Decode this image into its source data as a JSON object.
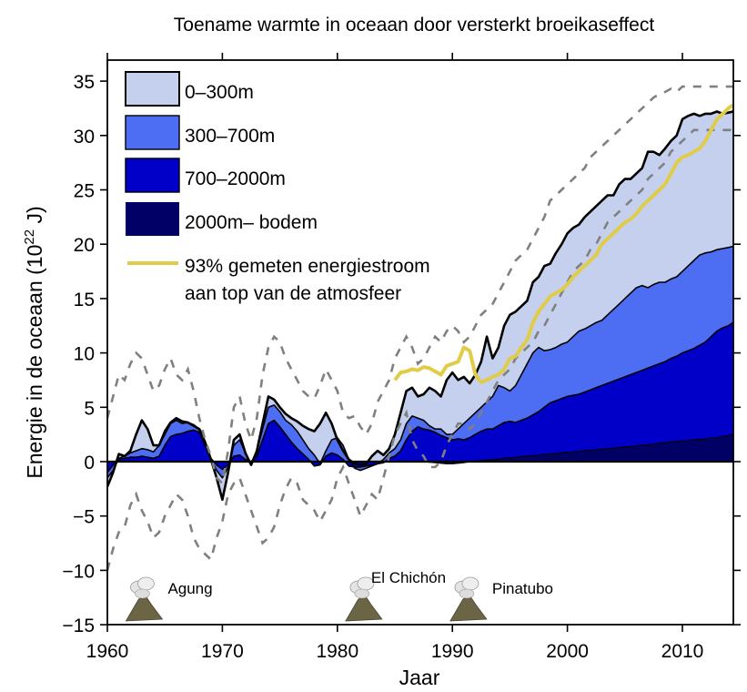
{
  "chart_data": {
    "type": "area",
    "title": "Toename warmte in oceaan door versterkt broeikaseffect",
    "xlabel": "Jaar",
    "ylabel": "Energie in de oceaan (10",
    "ylabel_sup": "22",
    "ylabel_unit": " J)",
    "xlim": [
      1960,
      2014.4
    ],
    "ylim": [
      -15,
      37
    ],
    "x_ticks": [
      1960,
      1970,
      1980,
      1990,
      2000,
      2010
    ],
    "x_tick_labels": [
      "1960",
      "1970",
      "1980",
      "1990",
      "2000",
      "2010"
    ],
    "y_ticks": [
      -15,
      -10,
      -5,
      0,
      5,
      10,
      15,
      20,
      25,
      30,
      35
    ],
    "y_tick_labels": [
      "−15",
      "−10",
      "−5",
      "0",
      "5",
      "10",
      "15",
      "20",
      "25",
      "30",
      "35"
    ],
    "grid": false,
    "legend_position": "top-left",
    "legend": [
      {
        "label": "0–300m",
        "color": "#c4d0ee",
        "kind": "area"
      },
      {
        "label": "300–700m",
        "color": "#4d6df2",
        "kind": "area"
      },
      {
        "label": "700–2000m",
        "color": "#0000c8",
        "kind": "area"
      },
      {
        "label": "2000m– bodem",
        "color": "#000066",
        "kind": "area"
      },
      {
        "label": "93% gemeten energiestroom",
        "label2": "aan top van de atmosfeer",
        "color": "#e0cc48",
        "kind": "line"
      }
    ],
    "stacked_note": "Values are cumulative tops of each layer (stacked from bottom).",
    "x": [
      1960,
      1960.5,
      1961,
      1961.5,
      1962,
      1962.5,
      1963,
      1963.5,
      1964,
      1964.5,
      1965,
      1965.5,
      1966,
      1966.5,
      1967,
      1967.5,
      1968,
      1968.5,
      1969,
      1969.5,
      1970,
      1970.5,
      1971,
      1971.5,
      1972,
      1972.5,
      1973,
      1973.5,
      1974,
      1974.5,
      1975,
      1975.5,
      1976,
      1976.5,
      1977,
      1977.5,
      1978,
      1978.5,
      1979,
      1979.5,
      1980,
      1980.5,
      1981,
      1981.5,
      1982,
      1982.5,
      1983,
      1983.5,
      1984,
      1984.5,
      1985,
      1985.5,
      1986,
      1986.5,
      1987,
      1987.5,
      1988,
      1988.5,
      1989,
      1989.5,
      1990,
      1990.5,
      1991,
      1991.5,
      1992,
      1992.5,
      1993,
      1993.5,
      1994,
      1994.5,
      1995,
      1995.5,
      1996,
      1996.5,
      1997,
      1997.5,
      1998,
      1998.5,
      1999,
      1999.5,
      2000,
      2000.5,
      2001,
      2001.5,
      2002,
      2002.5,
      2003,
      2003.5,
      2004,
      2004.5,
      2005,
      2005.5,
      2006,
      2006.5,
      2007,
      2007.5,
      2008,
      2008.5,
      2009,
      2009.5,
      2010,
      2010.5,
      2011,
      2011.5,
      2012,
      2012.5,
      2013,
      2013.5,
      2014,
      2014.4
    ],
    "series": [
      {
        "name": "2000m– bodem",
        "values": [
          0,
          0,
          0,
          0,
          0,
          0,
          0,
          0,
          0,
          0,
          0,
          0,
          0,
          0,
          0,
          0,
          0,
          0,
          0,
          0,
          0,
          0,
          0,
          0,
          0,
          0,
          0,
          0,
          0,
          0,
          0,
          0,
          0,
          0,
          0,
          0,
          0,
          0,
          0,
          0,
          0,
          0,
          0,
          0,
          0,
          0,
          0,
          0,
          0,
          0,
          0,
          0,
          0,
          0,
          0,
          0,
          -0.05,
          -0.1,
          -0.15,
          -0.2,
          -0.2,
          -0.15,
          -0.1,
          0,
          0.05,
          0.1,
          0.15,
          0.2,
          0.25,
          0.3,
          0.35,
          0.4,
          0.45,
          0.5,
          0.55,
          0.6,
          0.65,
          0.7,
          0.75,
          0.8,
          0.85,
          0.9,
          0.95,
          1.0,
          1.05,
          1.1,
          1.15,
          1.2,
          1.25,
          1.3,
          1.35,
          1.4,
          1.45,
          1.5,
          1.55,
          1.6,
          1.7,
          1.75,
          1.8,
          1.85,
          1.9,
          1.95,
          2.0,
          2.05,
          2.1,
          2.15,
          2.2,
          2.3,
          2.4,
          2.5
        ]
      },
      {
        "name": "700–2000m",
        "values": [
          -1.0,
          -0.3,
          0.2,
          0.3,
          0.4,
          0.4,
          0.5,
          0.4,
          0.3,
          0.5,
          1.5,
          2.3,
          2.5,
          2.6,
          2.8,
          2.9,
          2.7,
          1.5,
          0.3,
          -0.3,
          -0.7,
          -0.3,
          0.5,
          0.6,
          0.2,
          0,
          0.5,
          2.0,
          3.5,
          3.8,
          3.2,
          2.5,
          1.8,
          1.2,
          0.7,
          0.2,
          -0.4,
          -0.3,
          0.5,
          0.8,
          0.6,
          0.2,
          -0.4,
          -0.5,
          -0.5,
          -0.4,
          -0.3,
          -0.2,
          -0.1,
          0.3,
          0.5,
          1.0,
          2.0,
          2.8,
          3.2,
          3.0,
          2.9,
          2.7,
          2.4,
          2.2,
          2.0,
          2.1,
          2.0,
          2.2,
          2.5,
          2.8,
          3.0,
          3.0,
          3.3,
          3.6,
          3.7,
          3.6,
          3.8,
          4.0,
          4.3,
          4.6,
          5.0,
          5.4,
          5.6,
          5.8,
          6.0,
          6.1,
          6.2,
          6.4,
          6.6,
          6.8,
          7.0,
          7.2,
          7.4,
          7.6,
          7.8,
          8.0,
          8.2,
          8.4,
          8.6,
          8.8,
          9.0,
          9.2,
          9.5,
          9.7,
          10.0,
          10.2,
          10.4,
          10.7,
          11.0,
          11.5,
          12.0,
          12.3,
          12.5,
          12.8
        ]
      },
      {
        "name": "300–700m",
        "values": [
          -1.5,
          -0.8,
          0.3,
          0.5,
          0.8,
          1.0,
          1.2,
          1.1,
          0.9,
          1.5,
          2.5,
          3.5,
          3.8,
          3.5,
          3.6,
          3.4,
          3.0,
          1.5,
          0.2,
          -0.8,
          -1.5,
          -0.5,
          1.5,
          2.0,
          0.8,
          -0.2,
          1.0,
          3.0,
          5.0,
          5.2,
          4.6,
          3.8,
          3.4,
          2.8,
          2.0,
          1.2,
          0.6,
          -0.2,
          1.0,
          2.0,
          2.2,
          1.5,
          0.2,
          -0.6,
          -0.8,
          -0.6,
          -0.4,
          -0.2,
          0.2,
          0.8,
          1.2,
          2.0,
          3.5,
          4.2,
          4.0,
          3.8,
          3.3,
          3.0,
          3.0,
          2.5,
          2.5,
          3.0,
          3.5,
          4.0,
          4.5,
          5.0,
          5.5,
          6.0,
          7.0,
          6.8,
          6.5,
          7.0,
          8.0,
          9.0,
          10.0,
          10.5,
          10.2,
          10.3,
          10.5,
          10.8,
          11.0,
          11.5,
          12.0,
          12.2,
          12.5,
          12.8,
          13.0,
          13.5,
          14.0,
          14.5,
          15.0,
          15.5,
          16.0,
          16.2,
          16.0,
          16.3,
          16.5,
          16.5,
          16.8,
          17.0,
          17.5,
          18.0,
          18.5,
          19.0,
          19.2,
          19.3,
          19.5,
          19.6,
          19.7,
          19.8
        ]
      },
      {
        "name": "0–300m",
        "values": [
          -2.3,
          -1.0,
          0.7,
          0.5,
          1.0,
          2.5,
          3.8,
          3.0,
          1.5,
          1.5,
          2.8,
          3.6,
          4.0,
          3.7,
          3.6,
          3.3,
          3.0,
          1.8,
          0.2,
          -1.5,
          -3.5,
          -1.0,
          2.0,
          2.5,
          0.8,
          -0.3,
          1.0,
          3.5,
          6.0,
          5.7,
          5.0,
          4.4,
          4.0,
          3.7,
          3.3,
          3.0,
          2.8,
          3.5,
          4.5,
          3.5,
          2.0,
          1.0,
          0.2,
          -0.2,
          -0.3,
          -0.2,
          0.5,
          1.0,
          0.6,
          1.2,
          2.5,
          4.5,
          6.5,
          6.8,
          6.0,
          6.2,
          6.8,
          6.5,
          6.0,
          7.5,
          8.2,
          7.5,
          7.8,
          7.2,
          8.0,
          9.2,
          11.5,
          9.5,
          10.5,
          12.5,
          13.5,
          13.8,
          14.3,
          14.8,
          16.5,
          17.0,
          18.0,
          18.2,
          19.2,
          20.0,
          21.0,
          21.5,
          21.8,
          22.5,
          23.0,
          23.5,
          24.0,
          24.5,
          24.5,
          25.5,
          26.0,
          26.0,
          26.5,
          27.0,
          28.5,
          28.5,
          28.2,
          28.8,
          29.5,
          30.0,
          31.5,
          31.8,
          32.0,
          31.8,
          32.0,
          32.0,
          32.2,
          32.0,
          32.1,
          32.2
        ]
      }
    ],
    "uncertainty": {
      "name": "onzekerheid (gestreept)",
      "color": "#808080",
      "upper": [
        4.0,
        6.0,
        8.0,
        7.5,
        9.0,
        10.0,
        9.5,
        8.0,
        6.5,
        7.0,
        8.5,
        9.5,
        8.0,
        7.5,
        8.5,
        6.5,
        4.0,
        2.0,
        0.5,
        -1.5,
        -2.0,
        1.0,
        5.0,
        6.0,
        3.5,
        2.0,
        4.0,
        8.0,
        10.5,
        11.5,
        11.0,
        9.5,
        8.5,
        7.5,
        6.5,
        6.0,
        5.8,
        7.0,
        8.5,
        7.5,
        6.5,
        4.5,
        4.0,
        4.2,
        3.2,
        2.5,
        3.5,
        5.5,
        6.5,
        7.5,
        9.5,
        10.5,
        11.5,
        10.5,
        9.0,
        9.5,
        10.5,
        11.5,
        11.0,
        12.0,
        12.5,
        12.0,
        11.0,
        11.5,
        12.5,
        13.5,
        14.0,
        14.5,
        15.5,
        16.5,
        17.5,
        18.5,
        19.0,
        19.5,
        20.5,
        21.5,
        22.5,
        24.0,
        24.5,
        25.0,
        25.5,
        26.0,
        26.5,
        27.0,
        28.0,
        28.5,
        29.0,
        29.5,
        30.0,
        30.5,
        31.0,
        31.5,
        32.0,
        32.5,
        33.0,
        33.5,
        33.8,
        34.0,
        34.3,
        34.0,
        34.5,
        34.5,
        34.5,
        34.5,
        34.5,
        34.5,
        34.5,
        34.5,
        34.5,
        34.5
      ],
      "lower": [
        -10.0,
        -8.0,
        -6.5,
        -6.0,
        -4.0,
        -3.0,
        -4.5,
        -5.5,
        -7.0,
        -6.5,
        -5.0,
        -4.0,
        -3.0,
        -3.5,
        -5.0,
        -7.0,
        -8.0,
        -8.5,
        -9.0,
        -7.0,
        -5.5,
        -3.0,
        -2.0,
        -1.5,
        -3.0,
        -4.5,
        -6.0,
        -7.5,
        -7.0,
        -6.0,
        -4.0,
        -2.5,
        -1.5,
        -2.0,
        -3.5,
        -4.0,
        -4.5,
        -5.5,
        -4.5,
        -3.5,
        -1.5,
        -0.5,
        -2.0,
        -3.5,
        -5.0,
        -4.0,
        -3.0,
        -3.5,
        -1.5,
        0.5,
        2.5,
        3.5,
        4.5,
        2.0,
        1.0,
        0.5,
        -0.5,
        -0.5,
        0.0,
        1.5,
        2.5,
        3.5,
        3.5,
        3.0,
        3.5,
        4.5,
        5.5,
        6.5,
        7.5,
        8.0,
        8.5,
        9.5,
        10.0,
        10.5,
        11.0,
        12.0,
        12.5,
        13.5,
        14.5,
        15.5,
        16.5,
        17.5,
        18.0,
        18.5,
        19.5,
        20.0,
        21.0,
        22.0,
        22.5,
        23.0,
        23.5,
        24.0,
        24.5,
        25.0,
        26.0,
        26.5,
        27.0,
        27.5,
        28.5,
        29.0,
        29.5,
        30.0,
        30.5,
        30.5,
        30.5,
        30.5,
        30.5,
        30.5,
        30.5,
        30.5
      ]
    },
    "toa_flux": {
      "name": "93% gemeten energiestroom aan top van de atmosfeer",
      "color": "#e0cc48",
      "x": [
        1985,
        1985.5,
        1986,
        1986.5,
        1987,
        1987.5,
        1988,
        1988.5,
        1989,
        1989.5,
        1990,
        1990.5,
        1991,
        1991.5,
        1992,
        1992.5,
        1993,
        1993.5,
        1994,
        1994.5,
        1995,
        1995.5,
        1996,
        1996.5,
        1997,
        1997.5,
        1998,
        1998.5,
        1999,
        1999.5,
        2000,
        2000.5,
        2001,
        2001.5,
        2002,
        2002.5,
        2003,
        2003.5,
        2004,
        2004.5,
        2005,
        2005.5,
        2006,
        2006.5,
        2007,
        2007.5,
        2008,
        2008.5,
        2009,
        2009.5,
        2010,
        2010.5,
        2011,
        2011.5,
        2012,
        2012.5,
        2013,
        2013.5,
        2014,
        2014.4
      ],
      "values": [
        7.5,
        8.2,
        8.3,
        8.5,
        8.4,
        8.7,
        8.6,
        8.3,
        8.0,
        8.8,
        9.0,
        9.2,
        10.5,
        10.2,
        8.0,
        7.3,
        7.5,
        7.8,
        8.0,
        8.5,
        9.5,
        9.7,
        10.5,
        11.2,
        12.8,
        13.8,
        14.5,
        15.2,
        15.5,
        15.8,
        16.3,
        17.0,
        17.5,
        18.0,
        18.5,
        19.0,
        20.0,
        20.5,
        21.0,
        21.5,
        22.0,
        22.3,
        22.8,
        23.5,
        24.0,
        24.5,
        25.0,
        25.5,
        26.5,
        27.5,
        28.0,
        28.2,
        28.5,
        28.8,
        29.5,
        30.5,
        31.5,
        32.0,
        32.5,
        32.8
      ]
    },
    "annotations": [
      {
        "label": "Agung",
        "x": 1963.2,
        "kind": "volcano"
      },
      {
        "label": "El Chichón",
        "x": 1982.3,
        "kind": "volcano"
      },
      {
        "label": "Pinatubo",
        "x": 1991.4,
        "kind": "volcano"
      }
    ]
  }
}
